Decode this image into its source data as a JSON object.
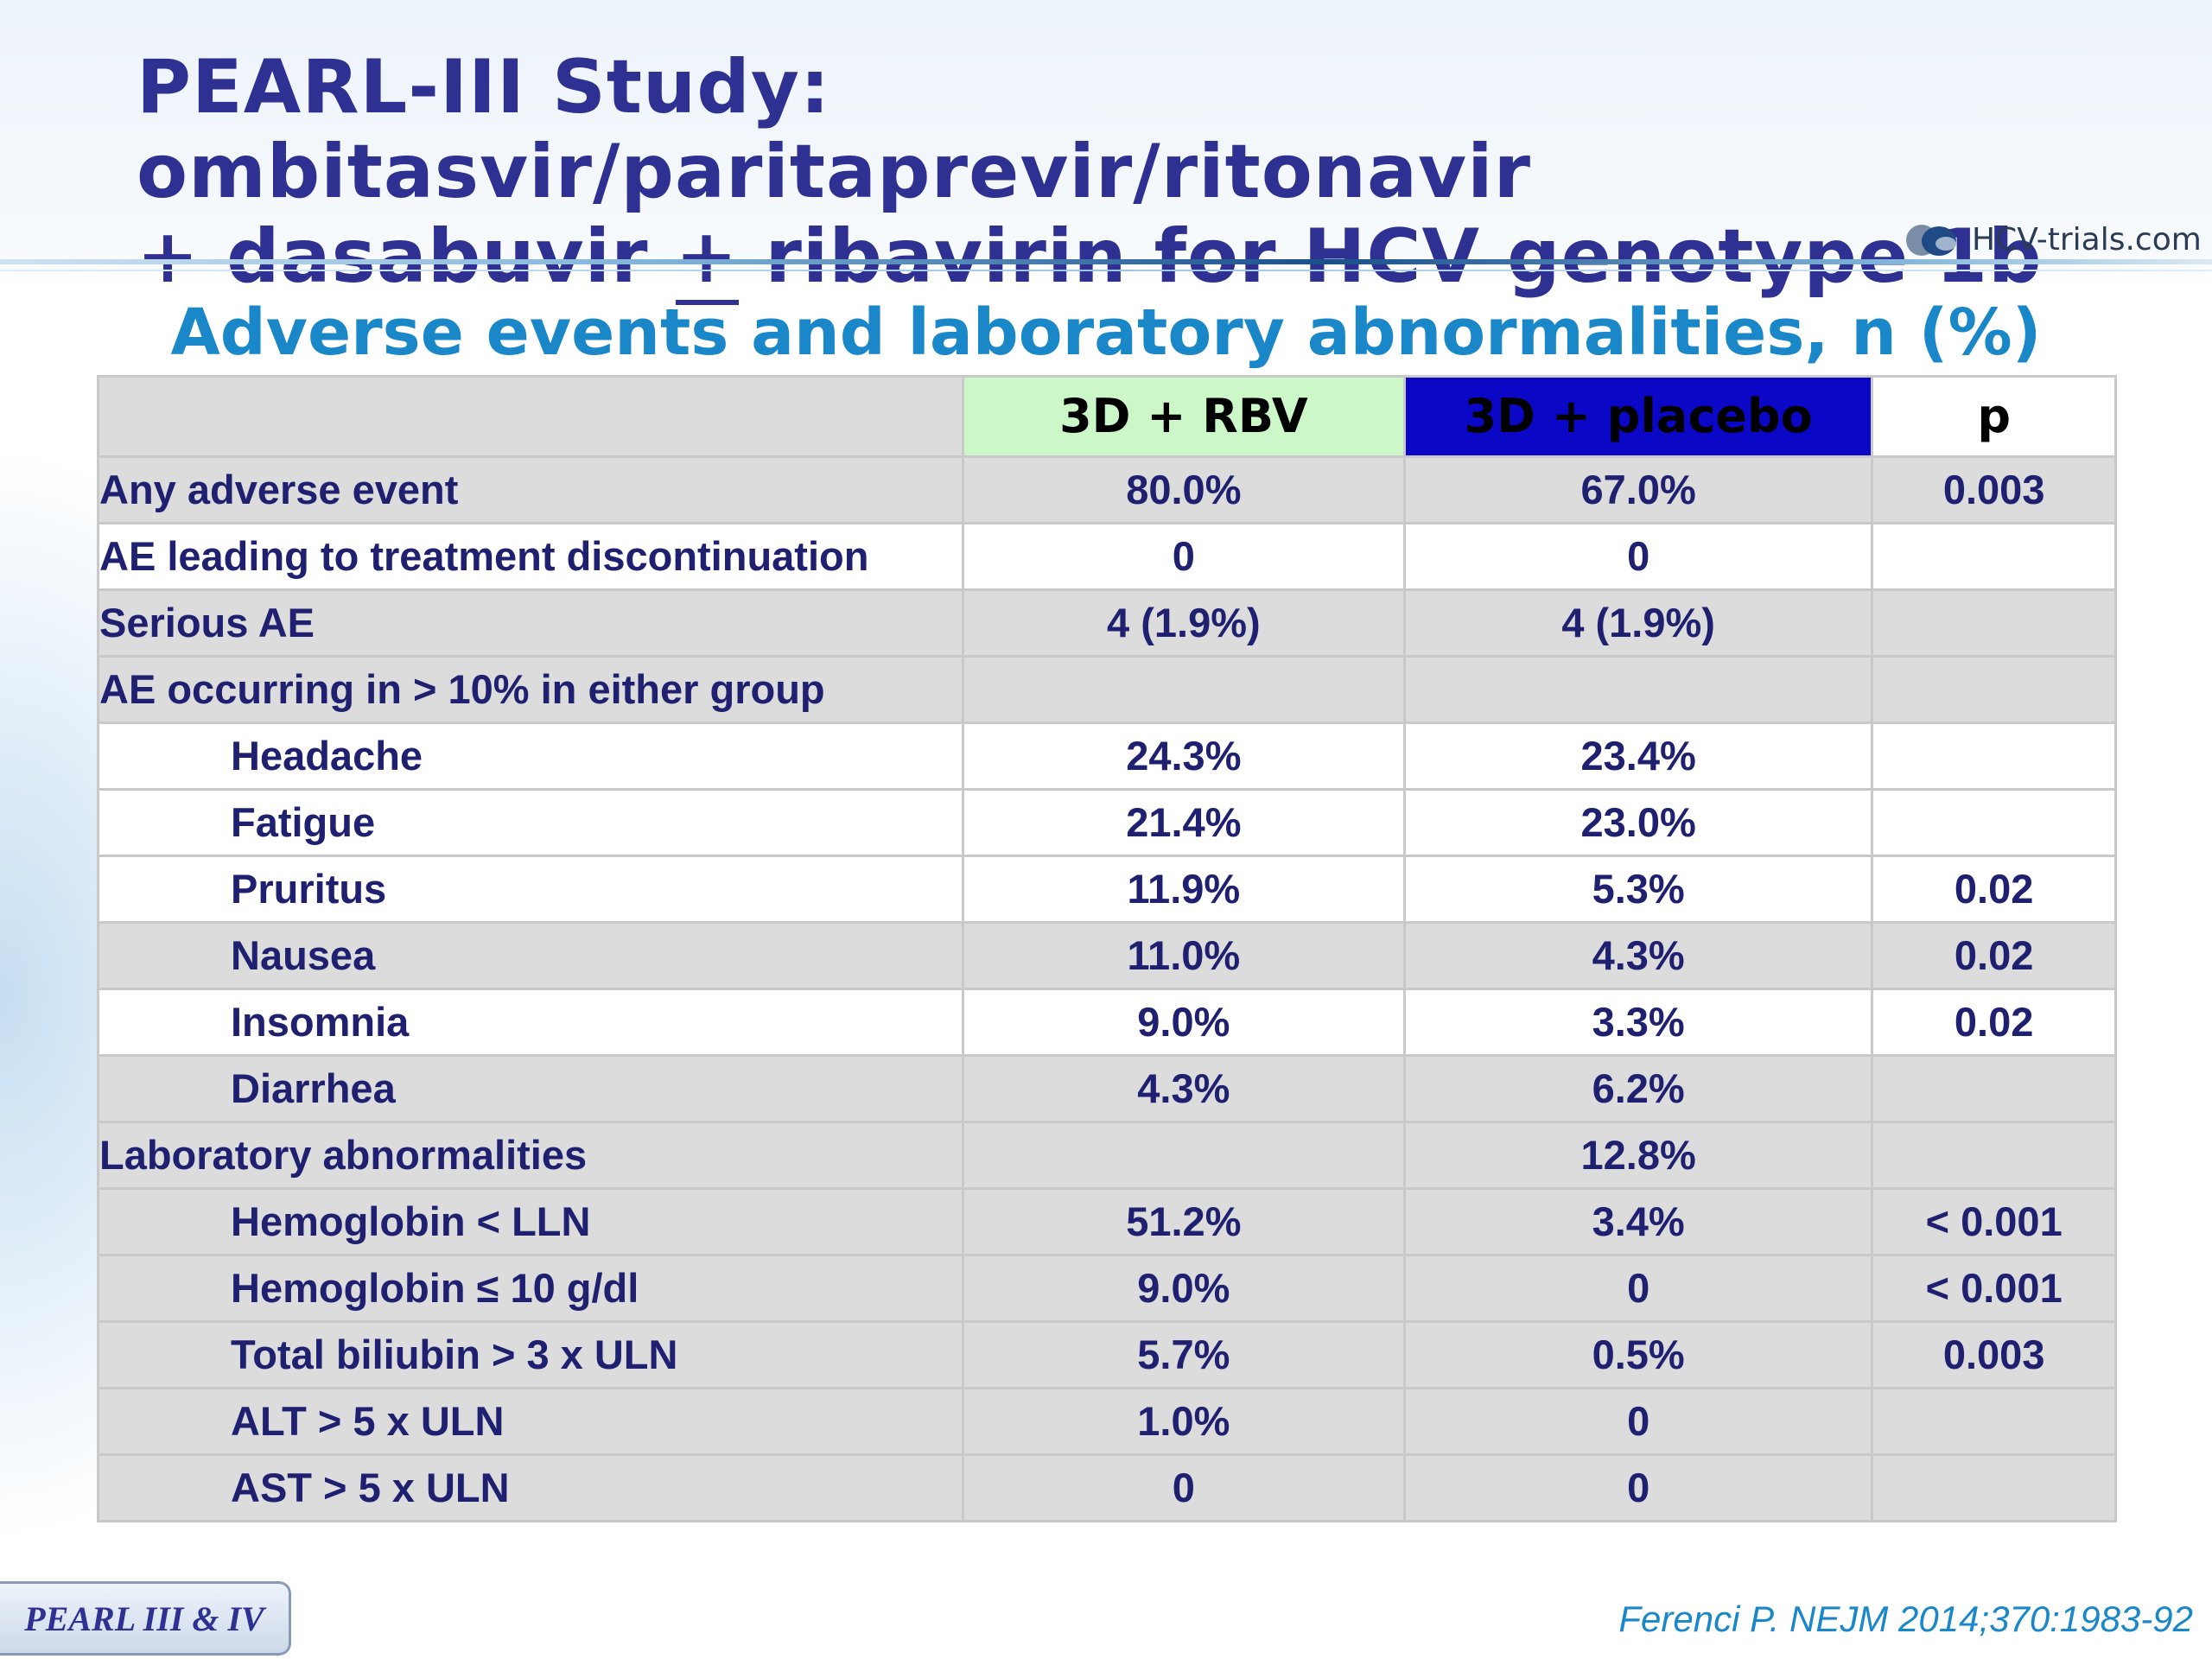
{
  "slide": {
    "title_line1": "PEARL-III Study: ombitasvir/paritaprevir/ritonavir",
    "title_line2_pre": "+ dasabuvir ",
    "title_line2_pm": "+",
    "title_line2_post": " ribavirin for HCV genotype 1b",
    "logo_text": "HCV-trials.com",
    "subtitle": "Adverse events and laboratory abnormalities, n (%)",
    "tag": "PEARL III & IV",
    "citation": "Ferenci P. NEJM 2014;370:1983-92"
  },
  "table": {
    "headers": [
      "",
      "3D + RBV",
      "3D + placebo",
      "p"
    ],
    "header_colors": {
      "rbv_bg": "#ccf7c8",
      "placebo_bg": "#0a07c6",
      "placebo_text": "#ffffff"
    },
    "rows": [
      {
        "label": "Any adverse event",
        "rbv": "80.0%",
        "placebo": "67.0%",
        "p": "0.003"
      },
      {
        "label": "AE leading to treatment discontinuation",
        "rbv": "0",
        "placebo": "0",
        "p": ""
      },
      {
        "label": "Serious AE",
        "rbv": "4 (1.9%)",
        "placebo": "4 (1.9%)",
        "p": ""
      },
      {
        "label": "AE occurring in > 10% in either group",
        "rbv": "",
        "placebo": "",
        "p": ""
      },
      {
        "label": "Headache",
        "rbv": "24.3%",
        "placebo": "23.4%",
        "p": ""
      },
      {
        "label": "Fatigue",
        "rbv": "21.4%",
        "placebo": "23.0%",
        "p": ""
      },
      {
        "label": "Pruritus",
        "rbv": "11.9%",
        "placebo": "5.3%",
        "p": "0.02"
      },
      {
        "label": "Nausea",
        "rbv": "11.0%",
        "placebo": "4.3%",
        "p": "0.02"
      },
      {
        "label": "Insomnia",
        "rbv": "9.0%",
        "placebo": "3.3%",
        "p": "0.02"
      },
      {
        "label": "Diarrhea",
        "rbv": "4.3%",
        "placebo": "6.2%",
        "p": ""
      },
      {
        "label": "Laboratory abnormalities",
        "rbv": "",
        "placebo": "12.8%",
        "p": ""
      },
      {
        "label": "Hemoglobin < LLN",
        "rbv": "51.2%",
        "placebo": "3.4%",
        "p": "< 0.001"
      },
      {
        "label": "Hemoglobin ≤ 10 g/dl",
        "rbv": "9.0%",
        "placebo": "0",
        "p": "< 0.001"
      },
      {
        "label": "Total biliubin > 3 x ULN",
        "rbv": "5.7%",
        "placebo": "0.5%",
        "p": "0.003"
      },
      {
        "label": "ALT > 5 x ULN",
        "rbv": "1.0%",
        "placebo": "0",
        "p": ""
      },
      {
        "label": "AST > 5 x ULN",
        "rbv": "0",
        "placebo": "0",
        "p": ""
      }
    ]
  }
}
